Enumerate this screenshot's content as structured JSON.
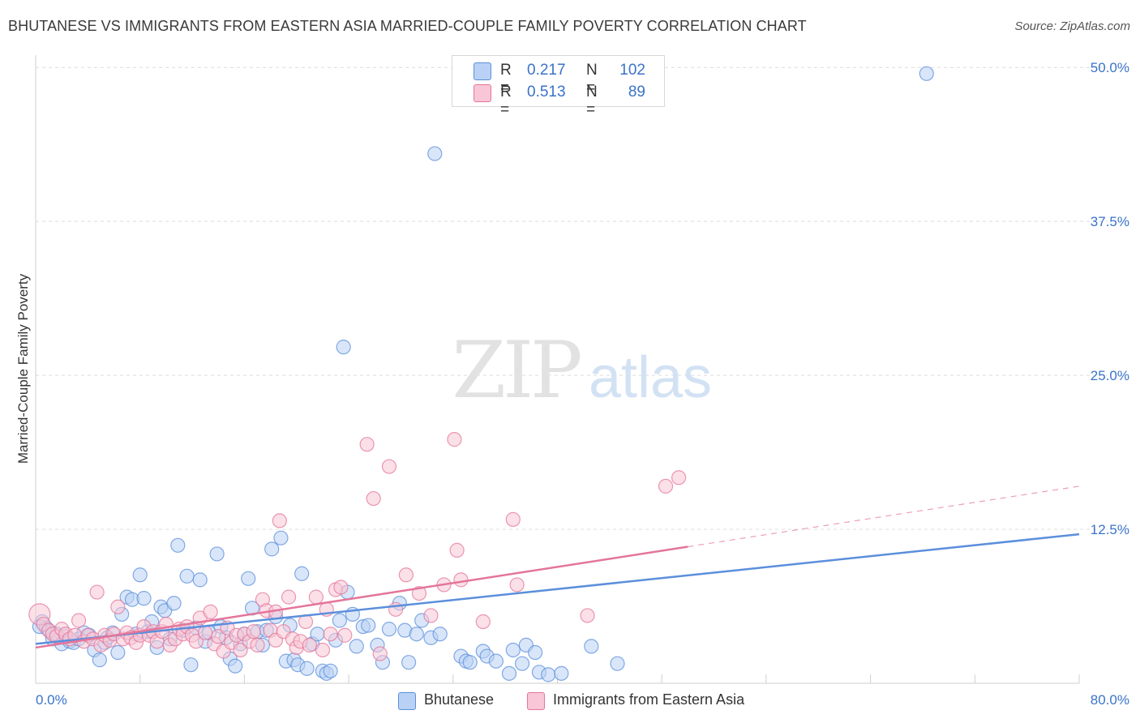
{
  "title": "BHUTANESE VS IMMIGRANTS FROM EASTERN ASIA MARRIED-COUPLE FAMILY POVERTY CORRELATION CHART",
  "source": "Source: ZipAtlas.com",
  "watermark": {
    "zip": "ZIP",
    "atlas": "atlas"
  },
  "stats": [
    {
      "r_label": "R =",
      "r_value": "0.217",
      "n_label": "N =",
      "n_value": "102",
      "color": "#5b8fdc",
      "fill": "#b9d1f4"
    },
    {
      "r_label": "R =",
      "r_value": "0.513",
      "n_label": "N =",
      "n_value": "89",
      "color": "#e4759a",
      "fill": "#f8c6d6"
    }
  ],
  "legend": [
    {
      "label": "Bhutanese"
    },
    {
      "label": "Immigrants from Eastern Asia"
    }
  ],
  "chart_data": {
    "type": "scatter",
    "title": "BHUTANESE VS IMMIGRANTS FROM EASTERN ASIA MARRIED-COUPLE FAMILY POVERTY CORRELATION CHART",
    "xlabel": "",
    "ylabel": "Married-Couple Family Poverty",
    "xlim": [
      0,
      80
    ],
    "ylim": [
      0,
      51
    ],
    "x_tick_labels": {
      "min": "0.0%",
      "max": "80.0%"
    },
    "y_ticks": [
      12.5,
      25.0,
      37.5,
      50.0
    ],
    "y_tick_labels": [
      "12.5%",
      "25.0%",
      "37.5%",
      "50.0%"
    ],
    "grid": true,
    "legend_position": "bottom-center",
    "series": [
      {
        "name": "Bhutanese",
        "color": "#5b8fdc",
        "fill": "#b9d1f4",
        "trend": {
          "x": [
            0,
            80
          ],
          "y": [
            3.2,
            12.1
          ],
          "dashed_from": null
        },
        "points": [
          [
            0.5,
            5.0
          ],
          [
            0.8,
            4.5
          ],
          [
            1.1,
            4.2
          ],
          [
            1.3,
            3.6
          ],
          [
            1.6,
            4.0
          ],
          [
            2.0,
            3.2
          ],
          [
            2.3,
            3.8
          ],
          [
            2.6,
            3.4
          ],
          [
            2.9,
            3.3
          ],
          [
            3.3,
            3.6
          ],
          [
            3.7,
            4.1
          ],
          [
            4.1,
            3.9
          ],
          [
            4.5,
            2.7
          ],
          [
            4.9,
            1.9
          ],
          [
            5.3,
            3.3
          ],
          [
            5.5,
            3.7
          ],
          [
            5.9,
            4.1
          ],
          [
            6.3,
            2.5
          ],
          [
            6.6,
            5.6
          ],
          [
            7.0,
            7.0
          ],
          [
            7.4,
            6.8
          ],
          [
            7.7,
            4.0
          ],
          [
            8.0,
            8.8
          ],
          [
            8.3,
            6.9
          ],
          [
            8.6,
            4.2
          ],
          [
            8.9,
            5.0
          ],
          [
            9.3,
            2.9
          ],
          [
            9.6,
            6.2
          ],
          [
            9.9,
            5.9
          ],
          [
            10.3,
            3.6
          ],
          [
            10.6,
            6.5
          ],
          [
            10.9,
            11.2
          ],
          [
            11.3,
            4.3
          ],
          [
            11.6,
            8.7
          ],
          [
            11.9,
            1.5
          ],
          [
            12.3,
            4.5
          ],
          [
            12.6,
            8.4
          ],
          [
            13.0,
            3.4
          ],
          [
            13.3,
            4.1
          ],
          [
            13.9,
            10.5
          ],
          [
            14.2,
            4.6
          ],
          [
            14.6,
            3.7
          ],
          [
            14.9,
            2.0
          ],
          [
            15.3,
            1.4
          ],
          [
            15.7,
            3.2
          ],
          [
            16.0,
            4.0
          ],
          [
            16.3,
            8.5
          ],
          [
            16.6,
            6.1
          ],
          [
            17.0,
            4.2
          ],
          [
            17.4,
            3.1
          ],
          [
            17.7,
            4.3
          ],
          [
            18.1,
            10.9
          ],
          [
            18.4,
            5.4
          ],
          [
            18.8,
            11.8
          ],
          [
            19.2,
            1.8
          ],
          [
            19.5,
            4.7
          ],
          [
            19.8,
            1.9
          ],
          [
            20.1,
            1.5
          ],
          [
            20.4,
            8.9
          ],
          [
            20.8,
            1.2
          ],
          [
            21.2,
            3.2
          ],
          [
            21.6,
            4.0
          ],
          [
            22.0,
            1.0
          ],
          [
            22.3,
            0.8
          ],
          [
            22.6,
            1.0
          ],
          [
            23.0,
            3.5
          ],
          [
            23.3,
            5.1
          ],
          [
            23.6,
            27.3
          ],
          [
            23.9,
            7.4
          ],
          [
            24.3,
            5.6
          ],
          [
            24.6,
            3.0
          ],
          [
            25.1,
            4.6
          ],
          [
            25.5,
            4.7
          ],
          [
            26.2,
            3.1
          ],
          [
            26.6,
            1.7
          ],
          [
            27.1,
            4.4
          ],
          [
            27.9,
            6.5
          ],
          [
            28.3,
            4.3
          ],
          [
            28.6,
            1.7
          ],
          [
            29.2,
            4.0
          ],
          [
            29.6,
            5.1
          ],
          [
            30.3,
            3.7
          ],
          [
            30.6,
            43.0
          ],
          [
            31.0,
            4.0
          ],
          [
            32.6,
            2.2
          ],
          [
            33.0,
            1.8
          ],
          [
            33.3,
            1.7
          ],
          [
            34.3,
            2.6
          ],
          [
            34.6,
            2.2
          ],
          [
            35.3,
            1.8
          ],
          [
            36.3,
            0.8
          ],
          [
            36.6,
            2.7
          ],
          [
            37.3,
            1.6
          ],
          [
            37.6,
            3.1
          ],
          [
            38.3,
            2.5
          ],
          [
            38.6,
            0.9
          ],
          [
            39.3,
            0.7
          ],
          [
            40.3,
            0.8
          ],
          [
            42.6,
            3.0
          ],
          [
            44.6,
            1.6
          ],
          [
            68.3,
            49.5
          ],
          [
            0.3,
            4.6
          ]
        ]
      },
      {
        "name": "Immigrants from Eastern Asia",
        "color": "#e4759a",
        "fill": "#f8c6d6",
        "trend": {
          "x": [
            0,
            80
          ],
          "y": [
            2.9,
            16.0
          ],
          "dashed_from": 50
        },
        "points": [
          [
            0.3,
            5.6
          ],
          [
            0.6,
            4.8
          ],
          [
            1.0,
            4.3
          ],
          [
            1.3,
            4.0
          ],
          [
            1.6,
            3.8
          ],
          [
            2.0,
            4.4
          ],
          [
            2.3,
            4.0
          ],
          [
            2.6,
            3.6
          ],
          [
            3.0,
            3.9
          ],
          [
            3.3,
            5.1
          ],
          [
            3.7,
            3.4
          ],
          [
            4.0,
            3.9
          ],
          [
            4.4,
            3.6
          ],
          [
            4.7,
            7.4
          ],
          [
            5.0,
            3.1
          ],
          [
            5.3,
            3.9
          ],
          [
            5.7,
            3.5
          ],
          [
            6.0,
            4.0
          ],
          [
            6.3,
            6.2
          ],
          [
            6.7,
            3.6
          ],
          [
            7.0,
            4.1
          ],
          [
            7.3,
            3.7
          ],
          [
            7.7,
            3.3
          ],
          [
            8.0,
            3.9
          ],
          [
            8.3,
            4.6
          ],
          [
            8.7,
            3.9
          ],
          [
            9.0,
            4.2
          ],
          [
            9.3,
            3.4
          ],
          [
            9.7,
            4.2
          ],
          [
            10.0,
            4.8
          ],
          [
            10.3,
            3.1
          ],
          [
            10.7,
            3.6
          ],
          [
            11.0,
            4.4
          ],
          [
            11.3,
            4.0
          ],
          [
            11.6,
            4.6
          ],
          [
            12.0,
            3.9
          ],
          [
            12.3,
            3.4
          ],
          [
            12.6,
            5.3
          ],
          [
            13.0,
            4.1
          ],
          [
            13.4,
            5.8
          ],
          [
            13.7,
            3.2
          ],
          [
            14.0,
            3.8
          ],
          [
            14.4,
            2.6
          ],
          [
            14.7,
            4.5
          ],
          [
            15.0,
            3.3
          ],
          [
            15.4,
            3.9
          ],
          [
            15.7,
            2.7
          ],
          [
            16.0,
            4.0
          ],
          [
            16.4,
            3.4
          ],
          [
            16.7,
            4.2
          ],
          [
            17.0,
            3.1
          ],
          [
            17.4,
            6.8
          ],
          [
            17.7,
            5.9
          ],
          [
            18.0,
            4.3
          ],
          [
            18.4,
            3.5
          ],
          [
            18.7,
            13.2
          ],
          [
            19.0,
            4.2
          ],
          [
            19.4,
            7.0
          ],
          [
            19.7,
            3.6
          ],
          [
            20.0,
            2.9
          ],
          [
            20.3,
            3.4
          ],
          [
            20.7,
            5.0
          ],
          [
            21.0,
            3.1
          ],
          [
            21.5,
            7.0
          ],
          [
            22.0,
            2.7
          ],
          [
            22.3,
            6.0
          ],
          [
            22.6,
            4.0
          ],
          [
            23.0,
            7.6
          ],
          [
            23.4,
            7.8
          ],
          [
            23.7,
            3.9
          ],
          [
            25.4,
            19.4
          ],
          [
            25.9,
            15.0
          ],
          [
            26.4,
            2.4
          ],
          [
            27.1,
            17.6
          ],
          [
            27.6,
            6.0
          ],
          [
            28.4,
            8.8
          ],
          [
            29.4,
            7.3
          ],
          [
            30.3,
            5.5
          ],
          [
            31.3,
            8.0
          ],
          [
            32.1,
            19.8
          ],
          [
            32.3,
            10.8
          ],
          [
            32.6,
            8.4
          ],
          [
            34.3,
            5.0
          ],
          [
            36.6,
            13.3
          ],
          [
            36.9,
            8.0
          ],
          [
            42.3,
            5.5
          ],
          [
            48.3,
            16.0
          ],
          [
            49.3,
            16.7
          ],
          [
            18.4,
            5.8
          ]
        ]
      }
    ]
  }
}
